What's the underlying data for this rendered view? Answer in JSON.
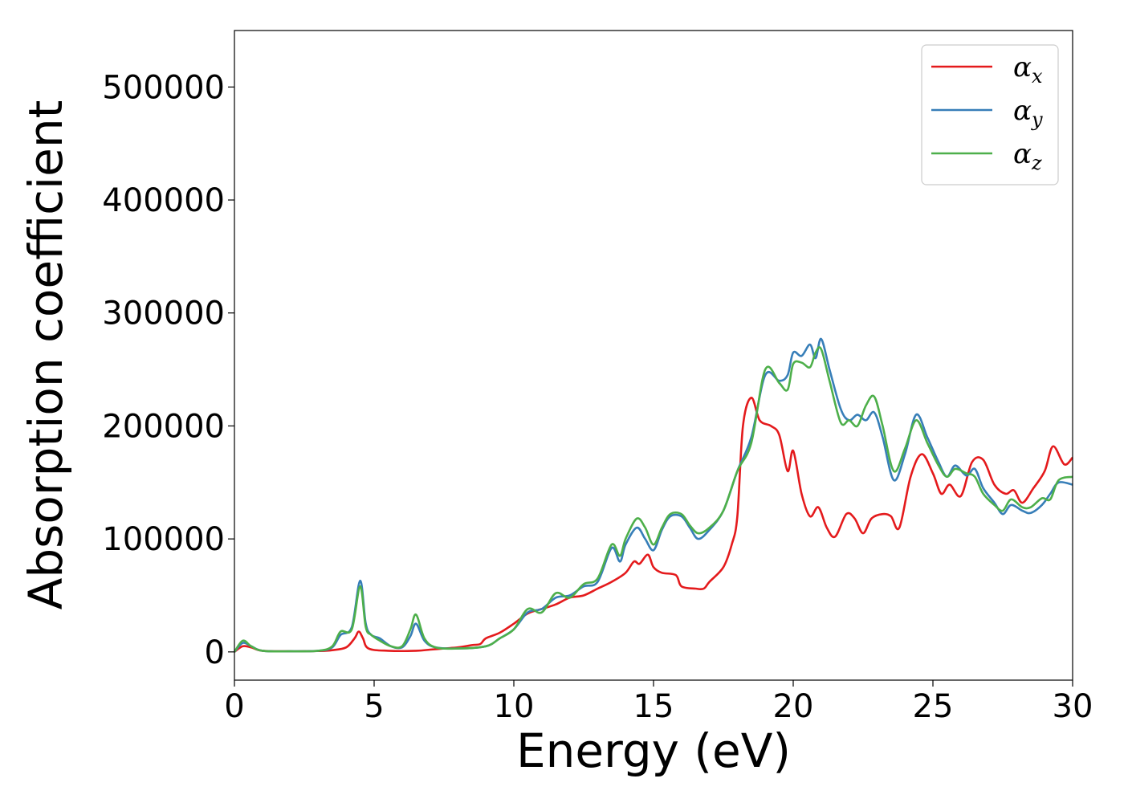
{
  "chart_data": {
    "type": "line",
    "xlabel": "Energy (eV)",
    "ylabel": "Absorption coefficient",
    "xlim": [
      0,
      30
    ],
    "ylim": [
      -25000,
      550000
    ],
    "xticks": [
      0,
      5,
      10,
      15,
      20,
      25,
      30
    ],
    "yticks": [
      0,
      100000,
      200000,
      300000,
      400000,
      500000
    ],
    "grid": false,
    "legend_position": "top-right",
    "series": [
      {
        "name": "αx",
        "label_main": "α",
        "label_sub": "x",
        "color": "#e41a1c",
        "points": [
          [
            0,
            0
          ],
          [
            0.3,
            5000
          ],
          [
            0.6,
            4000
          ],
          [
            1,
            1000
          ],
          [
            2,
            500
          ],
          [
            3,
            800
          ],
          [
            3.5,
            1500
          ],
          [
            4,
            4000
          ],
          [
            4.3,
            12000
          ],
          [
            4.45,
            18000
          ],
          [
            4.6,
            12000
          ],
          [
            4.8,
            3000
          ],
          [
            5.5,
            1000
          ],
          [
            6.5,
            1000
          ],
          [
            7,
            2000
          ],
          [
            7.5,
            3000
          ],
          [
            8,
            4000
          ],
          [
            8.5,
            6000
          ],
          [
            8.8,
            7000
          ],
          [
            9,
            12000
          ],
          [
            9.5,
            17000
          ],
          [
            10,
            25000
          ],
          [
            10.5,
            34000
          ],
          [
            11,
            38000
          ],
          [
            11.5,
            42000
          ],
          [
            12,
            48000
          ],
          [
            12.5,
            50000
          ],
          [
            13,
            56000
          ],
          [
            13.5,
            62000
          ],
          [
            14,
            70000
          ],
          [
            14.3,
            80000
          ],
          [
            14.5,
            78000
          ],
          [
            14.8,
            86000
          ],
          [
            15,
            75000
          ],
          [
            15.3,
            70000
          ],
          [
            15.8,
            68000
          ],
          [
            16,
            58000
          ],
          [
            16.5,
            56000
          ],
          [
            16.8,
            56000
          ],
          [
            17,
            62000
          ],
          [
            17.5,
            75000
          ],
          [
            17.8,
            95000
          ],
          [
            18,
            120000
          ],
          [
            18.2,
            200000
          ],
          [
            18.5,
            225000
          ],
          [
            18.8,
            205000
          ],
          [
            19.2,
            200000
          ],
          [
            19.5,
            192000
          ],
          [
            19.8,
            160000
          ],
          [
            20,
            178000
          ],
          [
            20.3,
            140000
          ],
          [
            20.6,
            120000
          ],
          [
            20.9,
            128000
          ],
          [
            21.2,
            110000
          ],
          [
            21.5,
            102000
          ],
          [
            21.9,
            122000
          ],
          [
            22.2,
            118000
          ],
          [
            22.5,
            105000
          ],
          [
            22.8,
            118000
          ],
          [
            23.2,
            122000
          ],
          [
            23.5,
            120000
          ],
          [
            23.8,
            110000
          ],
          [
            24.2,
            155000
          ],
          [
            24.6,
            175000
          ],
          [
            25,
            158000
          ],
          [
            25.3,
            140000
          ],
          [
            25.6,
            148000
          ],
          [
            26,
            138000
          ],
          [
            26.4,
            168000
          ],
          [
            26.8,
            170000
          ],
          [
            27.2,
            148000
          ],
          [
            27.6,
            140000
          ],
          [
            27.9,
            143000
          ],
          [
            28.2,
            132000
          ],
          [
            28.6,
            145000
          ],
          [
            29,
            160000
          ],
          [
            29.3,
            182000
          ],
          [
            29.7,
            166000
          ],
          [
            30,
            172000
          ]
        ]
      },
      {
        "name": "αy",
        "label_main": "α",
        "label_sub": "y",
        "color": "#377eb8",
        "points": [
          [
            0,
            0
          ],
          [
            0.3,
            8000
          ],
          [
            0.6,
            5000
          ],
          [
            1,
            1000
          ],
          [
            2,
            500
          ],
          [
            3,
            1000
          ],
          [
            3.5,
            4000
          ],
          [
            3.8,
            15000
          ],
          [
            4.2,
            22000
          ],
          [
            4.5,
            63000
          ],
          [
            4.7,
            25000
          ],
          [
            4.9,
            15000
          ],
          [
            5.2,
            12000
          ],
          [
            5.6,
            5000
          ],
          [
            6,
            4000
          ],
          [
            6.3,
            14000
          ],
          [
            6.5,
            25000
          ],
          [
            6.8,
            10000
          ],
          [
            7.2,
            4000
          ],
          [
            8,
            3000
          ],
          [
            9,
            5000
          ],
          [
            9.5,
            12000
          ],
          [
            10,
            20000
          ],
          [
            10.5,
            35000
          ],
          [
            11,
            38000
          ],
          [
            11.5,
            48000
          ],
          [
            12,
            50000
          ],
          [
            12.5,
            58000
          ],
          [
            13,
            62000
          ],
          [
            13.5,
            92000
          ],
          [
            13.8,
            80000
          ],
          [
            14,
            95000
          ],
          [
            14.4,
            110000
          ],
          [
            14.7,
            100000
          ],
          [
            15,
            90000
          ],
          [
            15.3,
            108000
          ],
          [
            15.6,
            120000
          ],
          [
            16,
            120000
          ],
          [
            16.3,
            110000
          ],
          [
            16.6,
            100000
          ],
          [
            17,
            108000
          ],
          [
            17.5,
            125000
          ],
          [
            18,
            160000
          ],
          [
            18.5,
            190000
          ],
          [
            19,
            245000
          ],
          [
            19.5,
            240000
          ],
          [
            19.8,
            245000
          ],
          [
            20,
            265000
          ],
          [
            20.3,
            262000
          ],
          [
            20.6,
            272000
          ],
          [
            20.8,
            260000
          ],
          [
            21,
            277000
          ],
          [
            21.3,
            250000
          ],
          [
            21.7,
            215000
          ],
          [
            22,
            205000
          ],
          [
            22.3,
            210000
          ],
          [
            22.6,
            205000
          ],
          [
            22.9,
            212000
          ],
          [
            23.2,
            190000
          ],
          [
            23.6,
            152000
          ],
          [
            24,
            175000
          ],
          [
            24.4,
            210000
          ],
          [
            24.8,
            190000
          ],
          [
            25.2,
            168000
          ],
          [
            25.5,
            155000
          ],
          [
            25.8,
            165000
          ],
          [
            26.2,
            156000
          ],
          [
            26.5,
            162000
          ],
          [
            26.8,
            145000
          ],
          [
            27.2,
            132000
          ],
          [
            27.5,
            122000
          ],
          [
            27.8,
            130000
          ],
          [
            28.2,
            125000
          ],
          [
            28.5,
            123000
          ],
          [
            28.9,
            130000
          ],
          [
            29.2,
            140000
          ],
          [
            29.5,
            150000
          ],
          [
            30,
            148000
          ]
        ]
      },
      {
        "name": "αz",
        "label_main": "α",
        "label_sub": "z",
        "color": "#4daf4a",
        "points": [
          [
            0,
            0
          ],
          [
            0.3,
            10000
          ],
          [
            0.6,
            5000
          ],
          [
            1,
            1000
          ],
          [
            2,
            500
          ],
          [
            3,
            1000
          ],
          [
            3.5,
            5000
          ],
          [
            3.8,
            18000
          ],
          [
            4.2,
            20000
          ],
          [
            4.5,
            58000
          ],
          [
            4.7,
            22000
          ],
          [
            4.9,
            15000
          ],
          [
            5.2,
            10000
          ],
          [
            5.6,
            5000
          ],
          [
            6,
            5000
          ],
          [
            6.3,
            20000
          ],
          [
            6.5,
            33000
          ],
          [
            6.8,
            12000
          ],
          [
            7.2,
            4000
          ],
          [
            8,
            3000
          ],
          [
            9,
            5000
          ],
          [
            9.5,
            12000
          ],
          [
            10,
            20000
          ],
          [
            10.5,
            38000
          ],
          [
            11,
            35000
          ],
          [
            11.5,
            52000
          ],
          [
            12,
            48000
          ],
          [
            12.5,
            60000
          ],
          [
            13,
            65000
          ],
          [
            13.5,
            95000
          ],
          [
            13.8,
            85000
          ],
          [
            14,
            100000
          ],
          [
            14.4,
            118000
          ],
          [
            14.7,
            110000
          ],
          [
            15,
            95000
          ],
          [
            15.3,
            110000
          ],
          [
            15.6,
            122000
          ],
          [
            16,
            122000
          ],
          [
            16.3,
            112000
          ],
          [
            16.6,
            105000
          ],
          [
            17,
            110000
          ],
          [
            17.5,
            125000
          ],
          [
            18,
            160000
          ],
          [
            18.5,
            185000
          ],
          [
            19,
            250000
          ],
          [
            19.5,
            238000
          ],
          [
            19.8,
            232000
          ],
          [
            20,
            255000
          ],
          [
            20.3,
            256000
          ],
          [
            20.6,
            252000
          ],
          [
            20.8,
            265000
          ],
          [
            21,
            268000
          ],
          [
            21.3,
            240000
          ],
          [
            21.7,
            203000
          ],
          [
            22,
            205000
          ],
          [
            22.3,
            200000
          ],
          [
            22.6,
            218000
          ],
          [
            22.9,
            226000
          ],
          [
            23.2,
            200000
          ],
          [
            23.6,
            160000
          ],
          [
            24,
            180000
          ],
          [
            24.4,
            205000
          ],
          [
            24.8,
            185000
          ],
          [
            25.2,
            165000
          ],
          [
            25.5,
            155000
          ],
          [
            25.8,
            162000
          ],
          [
            26.2,
            158000
          ],
          [
            26.5,
            155000
          ],
          [
            26.8,
            140000
          ],
          [
            27.2,
            130000
          ],
          [
            27.5,
            125000
          ],
          [
            27.8,
            135000
          ],
          [
            28.2,
            128000
          ],
          [
            28.5,
            128000
          ],
          [
            28.9,
            136000
          ],
          [
            29.2,
            135000
          ],
          [
            29.5,
            152000
          ],
          [
            30,
            155000
          ]
        ]
      }
    ]
  }
}
